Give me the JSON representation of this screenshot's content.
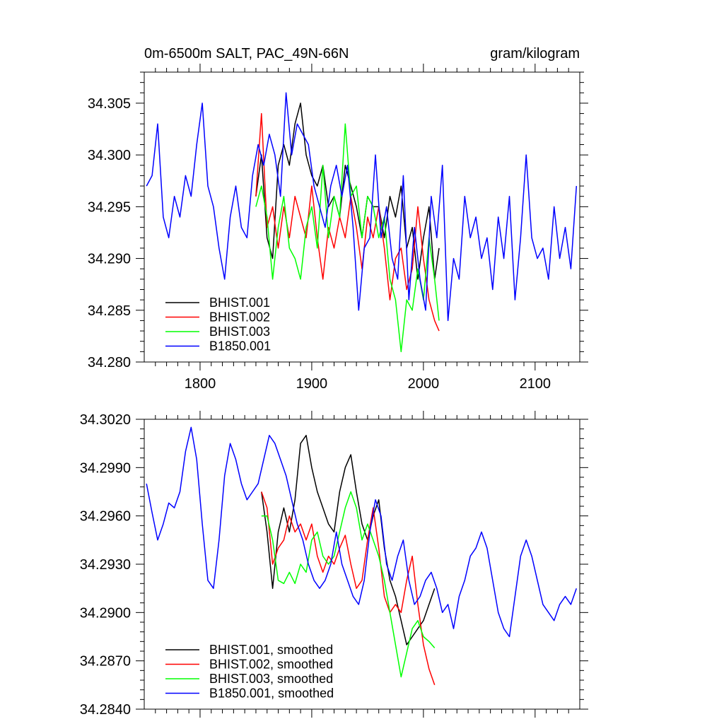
{
  "chart_data": [
    {
      "type": "line",
      "title": "0m-6500m SALT, PAC_49N-66N",
      "units": "gram/kilogram",
      "xlim": [
        1750,
        2140
      ],
      "ylim": [
        34.28,
        34.308
      ],
      "xticks": [
        1800,
        1900,
        2000,
        2100
      ],
      "xtick_labels": [
        "1800",
        "1900",
        "2000",
        "2100"
      ],
      "yticks": [
        34.28,
        34.285,
        34.29,
        34.295,
        34.3,
        34.305
      ],
      "ytick_labels": [
        "34.280",
        "34.285",
        "34.290",
        "34.295",
        "34.300",
        "34.305"
      ],
      "legend_position": "bottom-left",
      "series": [
        {
          "name": "BHIST.001",
          "color": "#000000",
          "x": [
            1850,
            1855,
            1860,
            1865,
            1870,
            1875,
            1880,
            1885,
            1890,
            1895,
            1900,
            1905,
            1910,
            1915,
            1920,
            1925,
            1930,
            1935,
            1940,
            1945,
            1950,
            1955,
            1960,
            1965,
            1970,
            1975,
            1980,
            1985,
            1990,
            1995,
            2000,
            2005,
            2010,
            2014
          ],
          "y": [
            34.296,
            34.3,
            34.292,
            34.29,
            34.299,
            34.301,
            34.299,
            34.303,
            34.305,
            34.3,
            34.298,
            34.297,
            34.299,
            34.295,
            34.296,
            34.294,
            34.299,
            34.297,
            34.295,
            34.292,
            34.296,
            34.295,
            34.295,
            34.292,
            34.296,
            34.294,
            34.297,
            34.291,
            34.293,
            34.288,
            34.292,
            34.295,
            34.288,
            34.291
          ]
        },
        {
          "name": "BHIST.002",
          "color": "#ff0000",
          "x": [
            1850,
            1855,
            1860,
            1865,
            1870,
            1875,
            1880,
            1885,
            1890,
            1895,
            1900,
            1905,
            1910,
            1915,
            1920,
            1925,
            1930,
            1935,
            1940,
            1945,
            1950,
            1955,
            1960,
            1965,
            1970,
            1975,
            1980,
            1985,
            1990,
            1995,
            2000,
            2005,
            2010,
            2014
          ],
          "y": [
            34.296,
            34.304,
            34.293,
            34.295,
            34.291,
            34.295,
            34.292,
            34.296,
            34.294,
            34.292,
            34.297,
            34.292,
            34.288,
            34.293,
            34.291,
            34.294,
            34.292,
            34.296,
            34.293,
            34.289,
            34.294,
            34.292,
            34.295,
            34.291,
            34.286,
            34.29,
            34.291,
            34.287,
            34.289,
            34.295,
            34.29,
            34.286,
            34.284,
            34.283
          ]
        },
        {
          "name": "BHIST.003",
          "color": "#00ff00",
          "x": [
            1850,
            1855,
            1860,
            1865,
            1870,
            1875,
            1880,
            1885,
            1890,
            1895,
            1900,
            1905,
            1910,
            1915,
            1920,
            1925,
            1930,
            1935,
            1940,
            1945,
            1950,
            1955,
            1960,
            1965,
            1970,
            1975,
            1980,
            1985,
            1990,
            1995,
            2000,
            2005,
            2010,
            2014
          ],
          "y": [
            34.295,
            34.297,
            34.294,
            34.288,
            34.293,
            34.296,
            34.291,
            34.29,
            34.288,
            34.293,
            34.295,
            34.291,
            34.299,
            34.292,
            34.296,
            34.294,
            34.303,
            34.296,
            34.297,
            34.292,
            34.296,
            34.295,
            34.292,
            34.294,
            34.288,
            34.286,
            34.281,
            34.286,
            34.285,
            34.289,
            34.286,
            34.292,
            34.288,
            34.284
          ]
        },
        {
          "name": "B1850.001",
          "color": "#0000ff",
          "x": [
            1752,
            1757,
            1762,
            1767,
            1772,
            1777,
            1782,
            1787,
            1792,
            1797,
            1802,
            1807,
            1812,
            1817,
            1822,
            1827,
            1832,
            1837,
            1842,
            1847,
            1852,
            1857,
            1862,
            1867,
            1872,
            1877,
            1882,
            1887,
            1892,
            1897,
            1902,
            1907,
            1912,
            1917,
            1922,
            1927,
            1932,
            1937,
            1942,
            1947,
            1952,
            1957,
            1962,
            1967,
            1972,
            1977,
            1982,
            1987,
            1992,
            1997,
            2002,
            2007,
            2012,
            2017,
            2022,
            2027,
            2032,
            2037,
            2042,
            2047,
            2052,
            2057,
            2062,
            2067,
            2072,
            2077,
            2082,
            2087,
            2092,
            2097,
            2102,
            2107,
            2112,
            2117,
            2122,
            2127,
            2132,
            2137
          ],
          "y": [
            34.297,
            34.298,
            34.303,
            34.294,
            34.292,
            34.296,
            34.294,
            34.298,
            34.296,
            34.301,
            34.305,
            34.297,
            34.295,
            34.291,
            34.288,
            34.294,
            34.297,
            34.293,
            34.292,
            34.298,
            34.301,
            34.299,
            34.302,
            34.3,
            34.296,
            34.306,
            34.3,
            34.303,
            34.302,
            34.301,
            34.297,
            34.295,
            34.293,
            34.297,
            34.299,
            34.296,
            34.299,
            34.293,
            34.285,
            34.291,
            34.292,
            34.3,
            34.292,
            34.295,
            34.29,
            34.288,
            34.298,
            34.286,
            34.293,
            34.288,
            34.285,
            34.296,
            34.292,
            34.299,
            34.284,
            34.29,
            34.288,
            34.296,
            34.292,
            34.294,
            34.29,
            34.292,
            34.287,
            34.294,
            34.29,
            34.296,
            34.286,
            34.292,
            34.3,
            34.292,
            34.29,
            34.291,
            34.288,
            34.295,
            34.29,
            34.293,
            34.289,
            34.297
          ]
        }
      ]
    },
    {
      "type": "line",
      "title": "",
      "xlim": [
        1750,
        2140
      ],
      "ylim": [
        34.284,
        34.302
      ],
      "xticks": [
        1800,
        1900,
        2000,
        2100
      ],
      "yticks": [
        34.284,
        34.287,
        34.29,
        34.293,
        34.296,
        34.299,
        34.302
      ],
      "ytick_labels": [
        "34.2840",
        "34.2870",
        "34.2900",
        "34.2930",
        "34.2960",
        "34.2990",
        "34.3020"
      ],
      "legend_position": "bottom-left",
      "series": [
        {
          "name": "BHIST.001, smoothed",
          "color": "#000000",
          "x": [
            1855,
            1860,
            1865,
            1870,
            1875,
            1880,
            1885,
            1890,
            1895,
            1900,
            1905,
            1910,
            1915,
            1920,
            1925,
            1930,
            1935,
            1940,
            1945,
            1950,
            1955,
            1960,
            1965,
            1970,
            1975,
            1980,
            1985,
            1990,
            1995,
            2000,
            2005,
            2010
          ],
          "y": [
            34.2975,
            34.295,
            34.2915,
            34.295,
            34.2965,
            34.295,
            34.297,
            34.3005,
            34.301,
            34.299,
            34.2975,
            34.2965,
            34.2955,
            34.295,
            34.2975,
            34.299,
            34.2998,
            34.2975,
            34.2955,
            34.2945,
            34.296,
            34.297,
            34.294,
            34.292,
            34.291,
            34.2895,
            34.288,
            34.2885,
            34.289,
            34.2895,
            34.2905,
            34.2915
          ]
        },
        {
          "name": "BHIST.002, smoothed",
          "color": "#ff0000",
          "x": [
            1855,
            1860,
            1865,
            1870,
            1875,
            1880,
            1885,
            1890,
            1895,
            1900,
            1905,
            1910,
            1915,
            1920,
            1925,
            1930,
            1935,
            1940,
            1945,
            1950,
            1955,
            1960,
            1965,
            1970,
            1975,
            1980,
            1985,
            1990,
            1995,
            2000,
            2005,
            2010
          ],
          "y": [
            34.2975,
            34.2965,
            34.293,
            34.294,
            34.2945,
            34.296,
            34.295,
            34.2955,
            34.2945,
            34.2955,
            34.2935,
            34.2925,
            34.2935,
            34.293,
            34.294,
            34.2948,
            34.293,
            34.2915,
            34.292,
            34.2945,
            34.2965,
            34.294,
            34.291,
            34.29,
            34.2905,
            34.29,
            34.292,
            34.2935,
            34.2905,
            34.288,
            34.2865,
            34.2855
          ]
        },
        {
          "name": "BHIST.003, smoothed",
          "color": "#00ff00",
          "x": [
            1855,
            1860,
            1865,
            1870,
            1875,
            1880,
            1885,
            1890,
            1895,
            1900,
            1905,
            1910,
            1915,
            1920,
            1925,
            1930,
            1935,
            1940,
            1945,
            1950,
            1955,
            1960,
            1965,
            1970,
            1975,
            1980,
            1985,
            1990,
            1995,
            2000,
            2005,
            2010
          ],
          "y": [
            34.296,
            34.296,
            34.2945,
            34.292,
            34.2918,
            34.2925,
            34.2918,
            34.293,
            34.2925,
            34.2945,
            34.295,
            34.2935,
            34.293,
            34.2935,
            34.295,
            34.2965,
            34.2975,
            34.2965,
            34.2945,
            34.2955,
            34.2945,
            34.2935,
            34.292,
            34.29,
            34.288,
            34.286,
            34.2875,
            34.289,
            34.2895,
            34.2885,
            34.2882,
            34.2878
          ]
        },
        {
          "name": "B1850.001, smoothed",
          "color": "#0000ff",
          "x": [
            1752,
            1757,
            1762,
            1767,
            1772,
            1777,
            1782,
            1787,
            1792,
            1797,
            1802,
            1807,
            1812,
            1817,
            1822,
            1827,
            1832,
            1837,
            1842,
            1847,
            1852,
            1857,
            1862,
            1867,
            1872,
            1877,
            1882,
            1887,
            1892,
            1897,
            1902,
            1907,
            1912,
            1917,
            1922,
            1927,
            1932,
            1937,
            1942,
            1947,
            1952,
            1957,
            1962,
            1967,
            1972,
            1977,
            1982,
            1987,
            1992,
            1997,
            2002,
            2007,
            2012,
            2017,
            2022,
            2027,
            2032,
            2037,
            2042,
            2047,
            2052,
            2057,
            2062,
            2067,
            2072,
            2077,
            2082,
            2087,
            2092,
            2097,
            2102,
            2107,
            2112,
            2117,
            2122,
            2127,
            2132,
            2137
          ],
          "y": [
            34.298,
            34.2962,
            34.2945,
            34.2955,
            34.2968,
            34.2965,
            34.2975,
            34.3,
            34.3015,
            34.2995,
            34.2955,
            34.292,
            34.2915,
            34.2945,
            34.2985,
            34.3005,
            34.2995,
            34.298,
            34.297,
            34.2975,
            34.298,
            34.2995,
            34.301,
            34.3005,
            34.2995,
            34.2985,
            34.297,
            34.2955,
            34.2945,
            34.293,
            34.292,
            34.2915,
            34.292,
            34.293,
            34.295,
            34.293,
            34.292,
            34.291,
            34.2905,
            34.292,
            34.295,
            34.297,
            34.296,
            34.293,
            34.292,
            34.2935,
            34.2945,
            34.292,
            34.2905,
            34.291,
            34.292,
            34.2925,
            34.2915,
            34.29,
            34.2905,
            34.289,
            34.291,
            34.292,
            34.2935,
            34.294,
            34.295,
            34.294,
            34.292,
            34.29,
            34.289,
            34.2885,
            34.291,
            34.2935,
            34.2945,
            34.2935,
            34.292,
            34.2905,
            34.29,
            34.2895,
            34.2905,
            34.291,
            34.2905,
            34.2915
          ]
        }
      ]
    }
  ]
}
